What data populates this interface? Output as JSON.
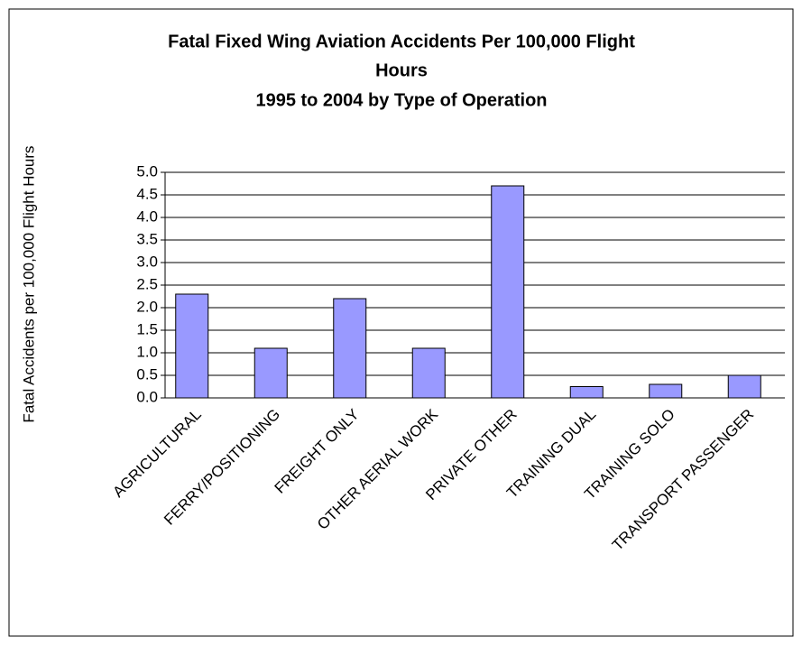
{
  "chart_data": {
    "type": "bar",
    "title_lines": [
      "Fatal Fixed Wing Aviation Accidents Per 100,000 Flight",
      "Hours",
      "1995 to 2004 by Type of Operation"
    ],
    "y_label": "Fatal Accidents per 100,000 Flight Hours",
    "categories": [
      "AGRICULTURAL",
      "FERRY/POSITIONING",
      "FREIGHT ONLY",
      "OTHER AERIAL WORK",
      "PRIVATE OTHER",
      "TRAINING DUAL",
      "TRAINING SOLO",
      "TRANSPORT PASSENGER"
    ],
    "values": [
      2.3,
      1.1,
      2.2,
      1.1,
      4.7,
      0.25,
      0.3,
      0.5
    ],
    "color": "#9999ff",
    "ylim": [
      0,
      5
    ],
    "yticks": [
      {
        "value": 0,
        "label": "0.0"
      },
      0.5,
      {
        "value": 1,
        "label": "1.0"
      },
      1.5,
      {
        "value": 2,
        "label": "2.0"
      },
      2.5,
      {
        "value": 3,
        "label": "3.0"
      },
      3.5,
      {
        "value": 4,
        "label": "4.0"
      },
      4.5,
      {
        "value": 5,
        "label": "5.0"
      }
    ],
    "grid": true
  }
}
